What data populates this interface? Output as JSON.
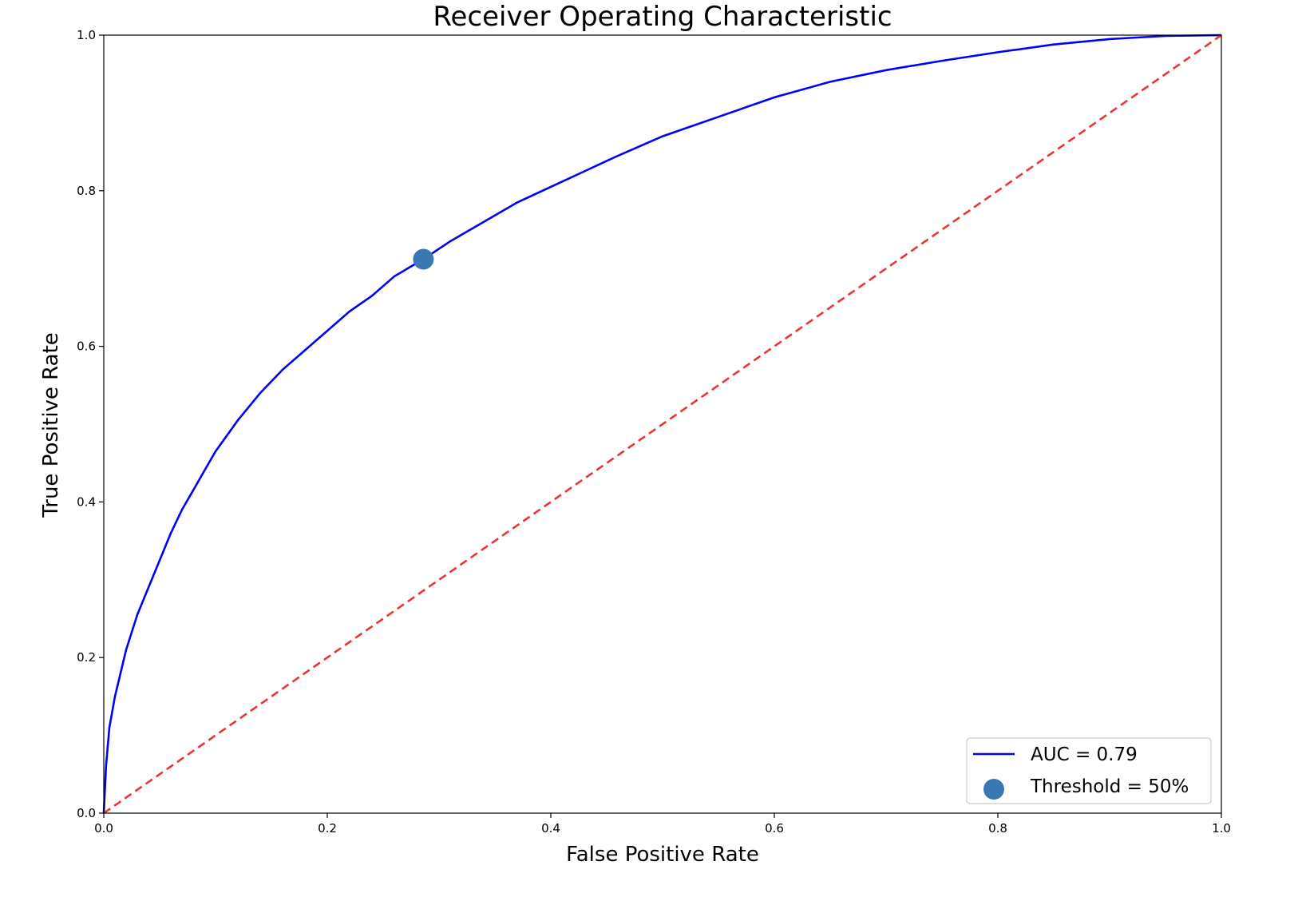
{
  "chart_data": {
    "type": "line",
    "title": "Receiver Operating Characteristic",
    "xlabel": "False Positive Rate",
    "ylabel": "True Positive Rate",
    "xlim": [
      0,
      1
    ],
    "ylim": [
      0,
      1
    ],
    "xticks": [
      "0.0",
      "0.2",
      "0.4",
      "0.6",
      "0.8",
      "1.0"
    ],
    "yticks": [
      "0.0",
      "0.2",
      "0.4",
      "0.6",
      "0.8",
      "1.0"
    ],
    "grid": false,
    "legend_position": "bottom-right",
    "series": [
      {
        "name": "AUC = 0.79",
        "kind": "line",
        "color": "#0000ff",
        "x": [
          0.0,
          0.002,
          0.005,
          0.01,
          0.015,
          0.02,
          0.03,
          0.04,
          0.05,
          0.06,
          0.07,
          0.08,
          0.09,
          0.1,
          0.12,
          0.14,
          0.16,
          0.18,
          0.2,
          0.22,
          0.24,
          0.26,
          0.286,
          0.31,
          0.34,
          0.37,
          0.4,
          0.43,
          0.46,
          0.5,
          0.55,
          0.6,
          0.65,
          0.7,
          0.75,
          0.8,
          0.85,
          0.9,
          0.95,
          1.0
        ],
        "y": [
          0.0,
          0.06,
          0.11,
          0.15,
          0.18,
          0.21,
          0.255,
          0.29,
          0.325,
          0.36,
          0.39,
          0.415,
          0.44,
          0.465,
          0.505,
          0.54,
          0.57,
          0.595,
          0.62,
          0.645,
          0.665,
          0.69,
          0.712,
          0.735,
          0.76,
          0.785,
          0.805,
          0.825,
          0.845,
          0.87,
          0.895,
          0.92,
          0.94,
          0.955,
          0.967,
          0.978,
          0.988,
          0.995,
          0.999,
          1.0
        ]
      },
      {
        "name": "",
        "kind": "dashed-line",
        "color": "#ee3333",
        "x": [
          0,
          1
        ],
        "y": [
          0,
          1
        ]
      },
      {
        "name": "Threshold = 50%",
        "kind": "point",
        "color": "#3a77b3",
        "x": [
          0.286
        ],
        "y": [
          0.712
        ]
      }
    ]
  }
}
